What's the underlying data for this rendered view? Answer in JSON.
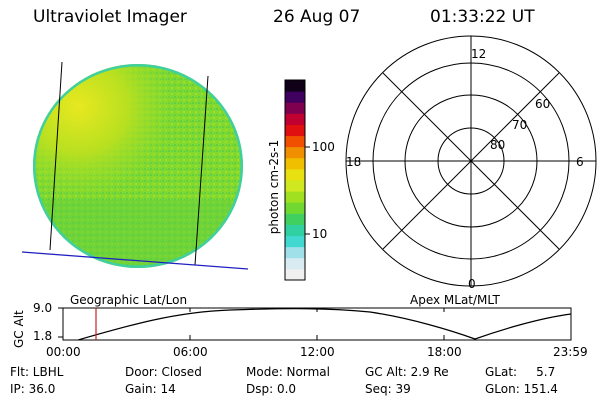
{
  "header": {
    "instrument": "Ultraviolet Imager",
    "date": "26 Aug 07",
    "time": "01:33:22 UT"
  },
  "colorbar": {
    "label": "photon cm-2s-1",
    "ticks": [
      "100",
      "10"
    ],
    "colors": [
      "#f0f0f0",
      "#d8ecf2",
      "#a0e0e8",
      "#40d8d0",
      "#30d0a0",
      "#40d060",
      "#70d830",
      "#a0e020",
      "#d0e820",
      "#e8e010",
      "#f0c000",
      "#f09000",
      "#f05000",
      "#e01010",
      "#c00030",
      "#800050",
      "#400060",
      "#100018"
    ]
  },
  "polar": {
    "lat_labels": [
      "60",
      "70",
      "80"
    ],
    "mlt_labels": {
      "top": "12",
      "right": "6",
      "bottom": "0",
      "left": "18"
    }
  },
  "image_labels": {
    "left": "Geographic Lat/Lon",
    "right": "Apex MLat/MLT"
  },
  "altitude_plot": {
    "ylabel": "GC Alt",
    "y_ticks": [
      "9.0",
      "1.8"
    ],
    "x_ticks": [
      "00:00",
      "06:00",
      "12:00",
      "18:00",
      "23:59"
    ],
    "marker_time": "01:33"
  },
  "info": {
    "flt": "Flt: LBHL",
    "ip": "IP: 36.0",
    "door": "Door: Closed",
    "gain": "Gain: 14",
    "mode": "Mode: Normal",
    "dsp": "Dsp:     0.0",
    "gcalt": "GC Alt: 2.9 Re",
    "seq": "Seq: 39",
    "glat": "GLat:     5.7",
    "glon": "GLon: 151.4"
  }
}
